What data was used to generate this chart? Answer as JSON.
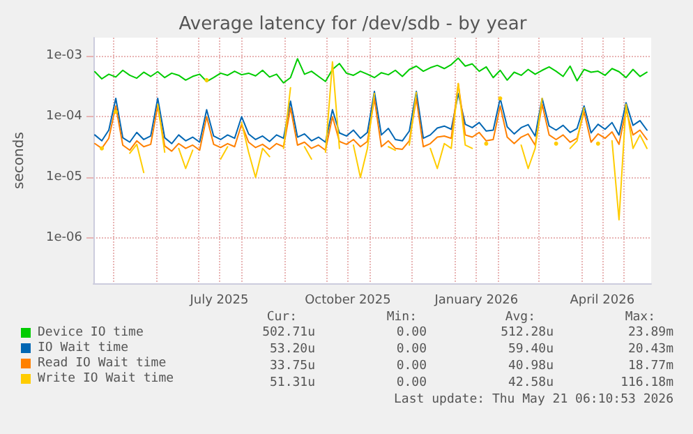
{
  "chart_data": {
    "type": "line",
    "title": "Average latency for /dev/sdb - by year",
    "ylabel": "seconds",
    "log": true,
    "grid": true,
    "legend": "bottom",
    "marker": "none",
    "line_style": "solid",
    "xlim": [
      "2025-04-17",
      "2026-05-21"
    ],
    "xticks": [
      {
        "value": "2025-05-01",
        "label": null
      },
      {
        "value": "2025-06-01",
        "label": null
      },
      {
        "value": "2025-07-01",
        "label": null
      },
      {
        "value": "2025-07-16",
        "label": "July 2025"
      },
      {
        "value": "2025-08-01",
        "label": null
      },
      {
        "value": "2025-09-01",
        "label": null
      },
      {
        "value": "2025-10-01",
        "label": null
      },
      {
        "value": "2025-10-16",
        "label": "October 2025"
      },
      {
        "value": "2025-11-01",
        "label": null
      },
      {
        "value": "2025-12-01",
        "label": null
      },
      {
        "value": "2026-01-01",
        "label": null
      },
      {
        "value": "2026-01-16",
        "label": "January 2026"
      },
      {
        "value": "2026-02-01",
        "label": null
      },
      {
        "value": "2026-03-01",
        "label": null
      },
      {
        "value": "2026-04-01",
        "label": null
      },
      {
        "value": "2026-04-16",
        "label": "April 2026"
      },
      {
        "value": "2026-05-01",
        "label": null
      }
    ],
    "ylim": [
      1.8e-07,
      0.002
    ],
    "yticks": [
      {
        "value": 1e-06,
        "label": "1e-06"
      },
      {
        "value": 1e-05,
        "label": "1e-05"
      },
      {
        "value": 0.0001,
        "label": "1e-04"
      },
      {
        "value": 0.001,
        "label": "1e-03"
      }
    ],
    "x": [
      "2025-04-18",
      "2025-04-23",
      "2025-04-28",
      "2025-05-03",
      "2025-05-08",
      "2025-05-13",
      "2025-05-18",
      "2025-05-23",
      "2025-05-28",
      "2025-06-02",
      "2025-06-07",
      "2025-06-12",
      "2025-06-17",
      "2025-06-22",
      "2025-06-27",
      "2025-07-02",
      "2025-07-07",
      "2025-07-12",
      "2025-07-17",
      "2025-07-22",
      "2025-07-27",
      "2025-08-01",
      "2025-08-06",
      "2025-08-11",
      "2025-08-16",
      "2025-08-21",
      "2025-08-26",
      "2025-08-31",
      "2025-09-05",
      "2025-09-10",
      "2025-09-15",
      "2025-09-20",
      "2025-09-25",
      "2025-09-30",
      "2025-10-05",
      "2025-10-10",
      "2025-10-15",
      "2025-10-20",
      "2025-10-25",
      "2025-10-30",
      "2025-11-04",
      "2025-11-09",
      "2025-11-14",
      "2025-11-19",
      "2025-11-24",
      "2025-11-29",
      "2025-12-04",
      "2025-12-09",
      "2025-12-14",
      "2025-12-19",
      "2025-12-24",
      "2025-12-29",
      "2026-01-03",
      "2026-01-08",
      "2026-01-13",
      "2026-01-18",
      "2026-01-23",
      "2026-01-28",
      "2026-02-02",
      "2026-02-07",
      "2026-02-12",
      "2026-02-17",
      "2026-02-22",
      "2026-02-27",
      "2026-03-04",
      "2026-03-09",
      "2026-03-14",
      "2026-03-19",
      "2026-03-24",
      "2026-03-29",
      "2026-04-03",
      "2026-04-08",
      "2026-04-13",
      "2026-04-18",
      "2026-04-23",
      "2026-04-28",
      "2026-05-03",
      "2026-05-08",
      "2026-05-13",
      "2026-05-18"
    ],
    "series": [
      {
        "name": "Device IO time",
        "color": "#00cc00",
        "values": [
          0.00055,
          0.00042,
          0.0005,
          0.00045,
          0.00058,
          0.00048,
          0.00043,
          0.00054,
          0.00046,
          0.00055,
          0.00044,
          0.00052,
          0.00048,
          0.0004,
          0.00046,
          0.0005,
          0.00038,
          0.00044,
          0.00052,
          0.00048,
          0.00056,
          0.00049,
          0.00052,
          0.00047,
          0.00058,
          0.00045,
          0.0005,
          0.00036,
          0.00044,
          0.0009,
          0.0005,
          0.00056,
          0.00046,
          0.00038,
          0.0006,
          0.00075,
          0.00052,
          0.00048,
          0.00056,
          0.0005,
          0.00044,
          0.00053,
          0.00049,
          0.00058,
          0.00046,
          0.0006,
          0.00068,
          0.00056,
          0.00064,
          0.0007,
          0.00062,
          0.00072,
          0.00092,
          0.00068,
          0.00074,
          0.00056,
          0.00066,
          0.00044,
          0.00058,
          0.0004,
          0.00054,
          0.00048,
          0.0006,
          0.0005,
          0.00058,
          0.00066,
          0.00056,
          0.00046,
          0.00068,
          0.00039,
          0.0006,
          0.00054,
          0.00056,
          0.00048,
          0.00062,
          0.00055,
          0.00044,
          0.0006,
          0.00046,
          0.00054
        ]
      },
      {
        "name": "IO Wait time",
        "color": "#0066b3",
        "values": [
          5e-05,
          4e-05,
          6e-05,
          0.0002,
          4.5e-05,
          3.8e-05,
          5.5e-05,
          4.2e-05,
          4.8e-05,
          0.0002,
          4.5e-05,
          3.6e-05,
          5e-05,
          4e-05,
          4.6e-05,
          3.8e-05,
          0.00013,
          4.8e-05,
          4.2e-05,
          5e-05,
          4.4e-05,
          0.0001,
          5.2e-05,
          4.2e-05,
          4.8e-05,
          3.9e-05,
          5e-05,
          4.4e-05,
          0.00018,
          4.6e-05,
          5.2e-05,
          4e-05,
          4.6e-05,
          3.8e-05,
          0.00013,
          5.4e-05,
          4.8e-05,
          6e-05,
          4.4e-05,
          5.5e-05,
          0.00026,
          5e-05,
          6.4e-05,
          4.2e-05,
          4e-05,
          5.8e-05,
          0.00026,
          4.4e-05,
          5e-05,
          6.5e-05,
          7e-05,
          6.2e-05,
          0.00024,
          7.5e-05,
          6.6e-05,
          8e-05,
          5.8e-05,
          6e-05,
          0.0002,
          6.8e-05,
          5.2e-05,
          6.6e-05,
          7.4e-05,
          4.8e-05,
          0.0002,
          7e-05,
          6e-05,
          7.2e-05,
          5.5e-05,
          6.4e-05,
          0.00015,
          5.4e-05,
          7.5e-05,
          6.2e-05,
          8e-05,
          5e-05,
          0.00017,
          7.2e-05,
          8.6e-05,
          6e-05
        ]
      },
      {
        "name": "Read IO Wait time",
        "color": "#ff8000",
        "values": [
          3.6e-05,
          3e-05,
          4.4e-05,
          0.00015,
          3.4e-05,
          2.8e-05,
          4e-05,
          3.2e-05,
          3.5e-05,
          0.00015,
          3.3e-05,
          2.7e-05,
          3.6e-05,
          3e-05,
          3.4e-05,
          2.8e-05,
          0.0001,
          3.5e-05,
          3.1e-05,
          3.6e-05,
          3.2e-05,
          7.5e-05,
          3.8e-05,
          3.1e-05,
          3.5e-05,
          2.9e-05,
          3.6e-05,
          3.2e-05,
          0.00014,
          3.4e-05,
          3.8e-05,
          3e-05,
          3.4e-05,
          2.8e-05,
          0.0001,
          3.9e-05,
          3.5e-05,
          4.2e-05,
          3.2e-05,
          3.9e-05,
          0.0002,
          3.2e-05,
          4e-05,
          3e-05,
          2.9e-05,
          4e-05,
          0.0002,
          3.2e-05,
          3.6e-05,
          4.6e-05,
          4.8e-05,
          4.4e-05,
          0.00035,
          5e-05,
          4.6e-05,
          5.5e-05,
          4e-05,
          4.2e-05,
          0.00015,
          4.6e-05,
          3.6e-05,
          4.6e-05,
          5.2e-05,
          3.4e-05,
          0.00016,
          5e-05,
          4.2e-05,
          5e-05,
          3.8e-05,
          4.4e-05,
          0.00012,
          3.8e-05,
          5.2e-05,
          4.4e-05,
          5.6e-05,
          3.5e-05,
          0.00013,
          5e-05,
          6e-05,
          4.2e-05
        ]
      },
      {
        "name": "Write IO Wait time",
        "color": "#ffcc00",
        "values": [
          null,
          3e-05,
          null,
          0.00012,
          null,
          2.5e-05,
          3.5e-05,
          1.2e-05,
          null,
          0.00016,
          2.6e-05,
          null,
          3e-05,
          1.4e-05,
          2.8e-05,
          null,
          0.0004,
          null,
          2e-05,
          3.2e-05,
          null,
          8e-05,
          2.6e-05,
          1e-05,
          3e-05,
          2.2e-05,
          null,
          3e-05,
          0.0003,
          null,
          3.2e-05,
          2e-05,
          null,
          2.6e-05,
          0.0008,
          3e-05,
          null,
          3.4e-05,
          1e-05,
          3e-05,
          0.00024,
          null,
          3.2e-05,
          2.8e-05,
          null,
          3.4e-05,
          0.00025,
          null,
          3e-05,
          1.4e-05,
          3.6e-05,
          3e-05,
          0.00035,
          3.4e-05,
          3e-05,
          null,
          3.6e-05,
          null,
          0.0002,
          null,
          null,
          3.4e-05,
          1.4e-05,
          3e-05,
          0.0002,
          null,
          3.6e-05,
          null,
          3e-05,
          4e-05,
          0.00014,
          null,
          3.6e-05,
          null,
          4e-05,
          2e-06,
          0.00016,
          3e-05,
          5e-05,
          3e-05
        ]
      }
    ],
    "annotations": [
      "Cur:",
      "Min:",
      "Avg:",
      "Max:",
      "502.71u",
      "0.00",
      "512.28u",
      "23.89m",
      "53.20u",
      "0.00",
      "59.40u",
      "20.43m",
      "33.75u",
      "0.00",
      "40.98u",
      "18.77m",
      "51.31u",
      "0.00",
      "42.58u",
      "116.18m",
      "Last update: Thu May 21 06:10:53 2026"
    ]
  }
}
